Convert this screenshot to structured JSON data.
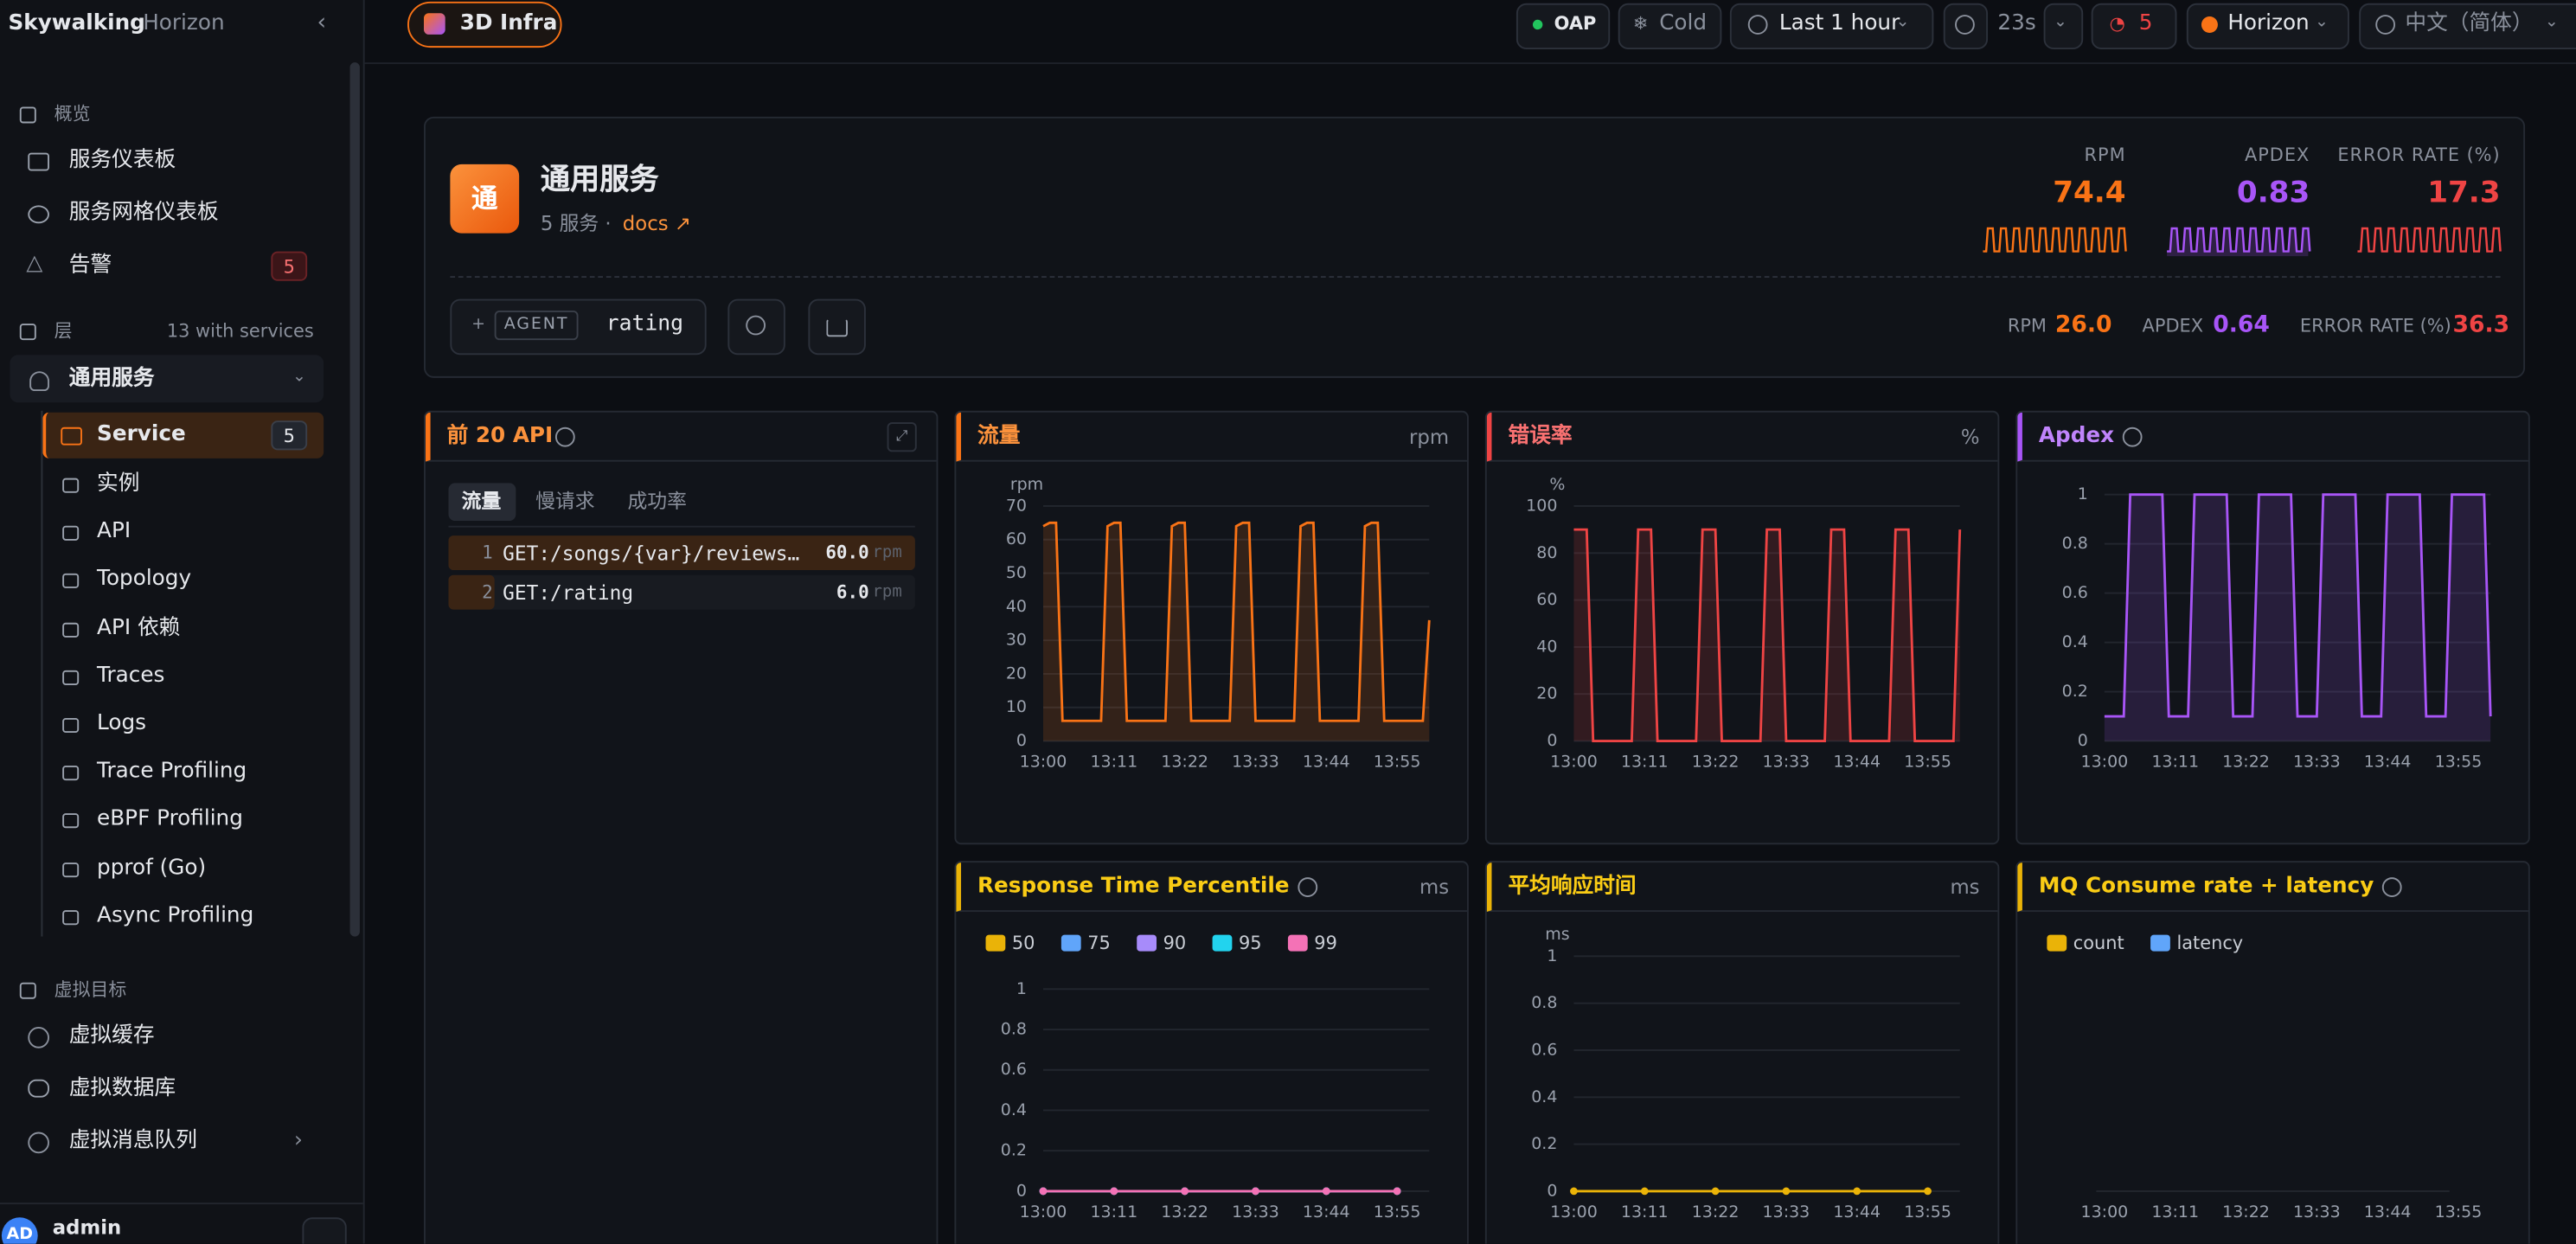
{
  "header": {
    "brand": "Skywalking",
    "workspace": "Horizon",
    "layer": "3D Infra"
  },
  "toolbar": {
    "oap": "OAP",
    "tier": "Cold",
    "time_range": "Last 1 hour",
    "refresh": "23s",
    "alerts": "5",
    "cluster": "Horizon",
    "language": "中文（简体）"
  },
  "sidebar": {
    "overview": {
      "title": "概览",
      "items": [
        "服务仪表板",
        "服务网格仪表板",
        "告警"
      ],
      "alert_badge": "5"
    },
    "layers": {
      "title": "层",
      "note": "13 with services",
      "group": "通用服务",
      "items": [
        "Service",
        "实例",
        "API",
        "Topology",
        "API 依赖",
        "Traces",
        "Logs",
        "Trace Profiling",
        "eBPF Profiling",
        "pprof (Go)",
        "Async Profiling"
      ],
      "service_badge": "5"
    },
    "virtual": {
      "title": "虚拟目标",
      "items": [
        "虚拟缓存",
        "虚拟数据库",
        "虚拟消息队列"
      ]
    },
    "user": {
      "avatar": "AD",
      "name": "admin"
    }
  },
  "service": {
    "icon": "通",
    "name": "通用服务",
    "count": "5 服务 ·",
    "docs": "docs ↗",
    "metrics": [
      {
        "label": "RPM",
        "value": "74.4"
      },
      {
        "label": "APDEX",
        "value": "0.83"
      },
      {
        "label": "ERROR RATE (%)",
        "value": "17.3"
      }
    ],
    "secondary": [
      {
        "label": "RPM",
        "value": "26.0"
      },
      {
        "label": "APDEX",
        "value": "0.64"
      },
      {
        "label": "ERROR RATE (%)",
        "value": "36.3"
      }
    ],
    "filter": {
      "tag": "AGENT",
      "value": "rating"
    }
  },
  "panels": [
    {
      "title": "前 20 API",
      "tabs": [
        "流量",
        "慢请求",
        "成功率"
      ],
      "rows": [
        {
          "rank": "1",
          "name": "GET:/songs/{var}/reviews…",
          "value": 60,
          "value_label": "60.0",
          "unit": "rpm"
        },
        {
          "rank": "2",
          "name": "GET:/rating",
          "value": 6,
          "value_label": "6.0",
          "unit": "rpm"
        }
      ]
    },
    {
      "title": "流量",
      "unit": "rpm",
      "chart": {
        "type": "line",
        "ylabel": "rpm",
        "area": true,
        "x": [
          0,
          1,
          2,
          3,
          4,
          5,
          6,
          7,
          8,
          9,
          10,
          11,
          12,
          13,
          14,
          15,
          16,
          17,
          18,
          19,
          20,
          21,
          22,
          23,
          24,
          25,
          26,
          27,
          28,
          29,
          30,
          31,
          32,
          33,
          34,
          35,
          36,
          37,
          38,
          39,
          40,
          41,
          42,
          43,
          44,
          45,
          46,
          47,
          48,
          49,
          50,
          51,
          52,
          53,
          54,
          55,
          56,
          57,
          58,
          59,
          60
        ],
        "xlim": [
          0,
          60
        ],
        "xticks": [
          {
            "value": 0,
            "label": "13:00"
          },
          {
            "value": 11,
            "label": "13:11"
          },
          {
            "value": 22,
            "label": "13:22"
          },
          {
            "value": 33,
            "label": "13:33"
          },
          {
            "value": 44,
            "label": "13:44"
          },
          {
            "value": 55,
            "label": "13:55"
          }
        ],
        "ylim": [
          0,
          70
        ],
        "yticks": [
          0,
          10,
          20,
          30,
          40,
          50,
          60,
          70
        ],
        "series": [
          {
            "color": "#f97316",
            "values": [
              64,
              65,
              65,
              6,
              6,
              6,
              6,
              6,
              6,
              6,
              64,
              65,
              65,
              6,
              6,
              6,
              6,
              6,
              6,
              6,
              64,
              65,
              65,
              6,
              6,
              6,
              6,
              6,
              6,
              6,
              64,
              65,
              65,
              6,
              6,
              6,
              6,
              6,
              6,
              6,
              64,
              65,
              65,
              6,
              6,
              6,
              6,
              6,
              6,
              6,
              64,
              65,
              65,
              6,
              6,
              6,
              6,
              6,
              6,
              6,
              36
            ]
          }
        ]
      }
    },
    {
      "title": "错误率",
      "unit": "%",
      "chart": {
        "type": "line",
        "ylabel": "%",
        "area": true,
        "x": [
          0,
          1,
          2,
          3,
          4,
          5,
          6,
          7,
          8,
          9,
          10,
          11,
          12,
          13,
          14,
          15,
          16,
          17,
          18,
          19,
          20,
          21,
          22,
          23,
          24,
          25,
          26,
          27,
          28,
          29,
          30,
          31,
          32,
          33,
          34,
          35,
          36,
          37,
          38,
          39,
          40,
          41,
          42,
          43,
          44,
          45,
          46,
          47,
          48,
          49,
          50,
          51,
          52,
          53,
          54,
          55,
          56,
          57,
          58,
          59,
          60
        ],
        "xlim": [
          0,
          60
        ],
        "xticks": [
          {
            "value": 0,
            "label": "13:00"
          },
          {
            "value": 11,
            "label": "13:11"
          },
          {
            "value": 22,
            "label": "13:22"
          },
          {
            "value": 33,
            "label": "13:33"
          },
          {
            "value": 44,
            "label": "13:44"
          },
          {
            "value": 55,
            "label": "13:55"
          }
        ],
        "ylim": [
          0,
          100
        ],
        "yticks": [
          0,
          20,
          40,
          60,
          80,
          100
        ],
        "series": [
          {
            "color": "#ef4444",
            "values": [
              90,
              90,
              90,
              0,
              0,
              0,
              0,
              0,
              0,
              0,
              90,
              90,
              90,
              0,
              0,
              0,
              0,
              0,
              0,
              0,
              90,
              90,
              90,
              0,
              0,
              0,
              0,
              0,
              0,
              0,
              90,
              90,
              90,
              0,
              0,
              0,
              0,
              0,
              0,
              0,
              90,
              90,
              90,
              0,
              0,
              0,
              0,
              0,
              0,
              0,
              90,
              90,
              90,
              0,
              0,
              0,
              0,
              0,
              0,
              0,
              90
            ]
          }
        ]
      }
    },
    {
      "title": "Apdex",
      "chart": {
        "type": "line",
        "area": true,
        "x": [
          0,
          1,
          2,
          3,
          4,
          5,
          6,
          7,
          8,
          9,
          10,
          11,
          12,
          13,
          14,
          15,
          16,
          17,
          18,
          19,
          20,
          21,
          22,
          23,
          24,
          25,
          26,
          27,
          28,
          29,
          30,
          31,
          32,
          33,
          34,
          35,
          36,
          37,
          38,
          39,
          40,
          41,
          42,
          43,
          44,
          45,
          46,
          47,
          48,
          49,
          50,
          51,
          52,
          53,
          54,
          55,
          56,
          57,
          58,
          59,
          60
        ],
        "xlim": [
          0,
          60
        ],
        "xticks": [
          {
            "value": 0,
            "label": "13:00"
          },
          {
            "value": 11,
            "label": "13:11"
          },
          {
            "value": 22,
            "label": "13:22"
          },
          {
            "value": 33,
            "label": "13:33"
          },
          {
            "value": 44,
            "label": "13:44"
          },
          {
            "value": 55,
            "label": "13:55"
          }
        ],
        "ylim": [
          0,
          1
        ],
        "yticks": [
          0,
          0.2,
          0.4,
          0.6,
          0.8,
          1
        ],
        "series": [
          {
            "color": "#a855f7",
            "values": [
              0.1,
              0.1,
              0.1,
              0.1,
              1,
              1,
              1,
              1,
              1,
              1,
              0.1,
              0.1,
              0.1,
              0.1,
              1,
              1,
              1,
              1,
              1,
              1,
              0.1,
              0.1,
              0.1,
              0.1,
              1,
              1,
              1,
              1,
              1,
              1,
              0.1,
              0.1,
              0.1,
              0.1,
              1,
              1,
              1,
              1,
              1,
              1,
              0.1,
              0.1,
              0.1,
              0.1,
              1,
              1,
              1,
              1,
              1,
              1,
              0.1,
              0.1,
              0.1,
              0.1,
              1,
              1,
              1,
              1,
              1,
              1,
              0.1
            ]
          }
        ]
      }
    },
    {
      "title": "Response Time Percentile",
      "unit": "ms",
      "chart": {
        "type": "line",
        "dots": true,
        "x": [
          0,
          11,
          22,
          33,
          44,
          55
        ],
        "xlim": [
          0,
          60
        ],
        "xticks": [
          {
            "value": 0,
            "label": "13:00"
          },
          {
            "value": 11,
            "label": "13:11"
          },
          {
            "value": 22,
            "label": "13:22"
          },
          {
            "value": 33,
            "label": "13:33"
          },
          {
            "value": 44,
            "label": "13:44"
          },
          {
            "value": 55,
            "label": "13:55"
          }
        ],
        "ylim": [
          0,
          1
        ],
        "yticks": [
          0,
          0.2,
          0.4,
          0.6,
          0.8,
          1
        ],
        "series": [
          {
            "name": "50",
            "color": "#eab308",
            "values": [
              0,
              0,
              0,
              0,
              0,
              0
            ]
          },
          {
            "name": "75",
            "color": "#60a5fa",
            "values": [
              0,
              0,
              0,
              0,
              0,
              0
            ]
          },
          {
            "name": "90",
            "color": "#a78bfa",
            "values": [
              0,
              0,
              0,
              0,
              0,
              0
            ]
          },
          {
            "name": "95",
            "color": "#22d3ee",
            "values": [
              0,
              0,
              0,
              0,
              0,
              0
            ]
          },
          {
            "name": "99",
            "color": "#f472b6",
            "values": [
              0,
              0,
              0,
              0,
              0,
              0
            ]
          }
        ]
      }
    },
    {
      "title": "平均响应时间",
      "unit": "ms",
      "chart": {
        "type": "line",
        "dots": true,
        "ylabel": "ms",
        "x": [
          0,
          11,
          22,
          33,
          44,
          55
        ],
        "xlim": [
          0,
          60
        ],
        "xticks": [
          {
            "value": 0,
            "label": "13:00"
          },
          {
            "value": 11,
            "label": "13:11"
          },
          {
            "value": 22,
            "label": "13:22"
          },
          {
            "value": 33,
            "label": "13:33"
          },
          {
            "value": 44,
            "label": "13:44"
          },
          {
            "value": 55,
            "label": "13:55"
          }
        ],
        "ylim": [
          0,
          1
        ],
        "yticks": [
          0,
          0.2,
          0.4,
          0.6,
          0.8,
          1
        ],
        "series": [
          {
            "color": "#eab308",
            "values": [
              0,
              0,
              0,
              0,
              0,
              0
            ]
          }
        ]
      }
    },
    {
      "title": "MQ Consume rate + latency",
      "chart": {
        "type": "line",
        "xlim": [
          0,
          60
        ],
        "xticks": [
          {
            "value": 0,
            "label": "13:00"
          },
          {
            "value": 11,
            "label": "13:11"
          },
          {
            "value": 22,
            "label": "13:22"
          },
          {
            "value": 33,
            "label": "13:33"
          },
          {
            "value": 44,
            "label": "13:44"
          },
          {
            "value": 55,
            "label": "13:55"
          }
        ],
        "series": [
          {
            "name": "count",
            "color": "#eab308"
          },
          {
            "name": "latency",
            "color": "#60a5fa"
          }
        ]
      }
    }
  ]
}
